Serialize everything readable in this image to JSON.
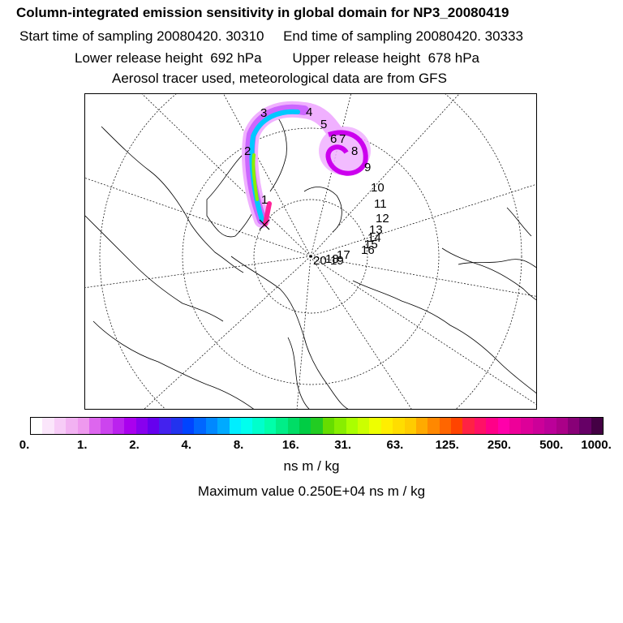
{
  "header": {
    "title": "Column-integrated emission sensitivity in global domain for NP3_20080419",
    "sampling_line": "Start time of sampling 20080420. 30310     End time of sampling 20080420. 30333",
    "release_line": "Lower release height  692 hPa        Upper release height  678 hPa",
    "tracer_line": "Aerosol tracer used, meteorological data are from GFS"
  },
  "map": {
    "projection": "polar-stereographic",
    "release_marker": "x-icon",
    "day_labels": [
      "1",
      "2",
      "3",
      "4",
      "5",
      "6",
      "7",
      "8",
      "9",
      "10",
      "11",
      "12",
      "13",
      "14",
      "15",
      "16",
      "17",
      "18",
      "19",
      "20"
    ],
    "plume_colors": {
      "core": "#ff2299",
      "mid": "#00c8ff",
      "outer": "#cc66ff",
      "faint": "#f0b0ff"
    }
  },
  "colorbar": {
    "tick_labels": [
      "0.",
      "1.",
      "2.",
      "4.",
      "8.",
      "16.",
      "31.",
      "63.",
      "125.",
      "250.",
      "500.",
      "1000."
    ],
    "colors": [
      "#ffffff",
      "#fbe6fb",
      "#f7ccf7",
      "#f2b2f2",
      "#ee99ee",
      "#dd66ee",
      "#cc44ee",
      "#bb22ee",
      "#aa00ee",
      "#8800ee",
      "#6600ee",
      "#4422ee",
      "#2233ee",
      "#0044ff",
      "#0066ff",
      "#0088ff",
      "#00aaff",
      "#00eeff",
      "#00ffee",
      "#00ffcc",
      "#00ffaa",
      "#00ee88",
      "#00dd66",
      "#00cc44",
      "#22cc22",
      "#66dd00",
      "#88ee00",
      "#aaff00",
      "#ccff00",
      "#eeff00",
      "#ffee00",
      "#ffdd00",
      "#ffcc00",
      "#ffaa00",
      "#ff8800",
      "#ff6600",
      "#ff4400",
      "#ff2244",
      "#ff1166",
      "#ff0088",
      "#ff00aa",
      "#ee0099",
      "#dd0099",
      "#cc0099",
      "#bb0099",
      "#aa0088",
      "#880077",
      "#660066",
      "#440044"
    ],
    "units": "ns m / kg",
    "max_value_text": "Maximum value  0.250E+04 ns m / kg"
  }
}
